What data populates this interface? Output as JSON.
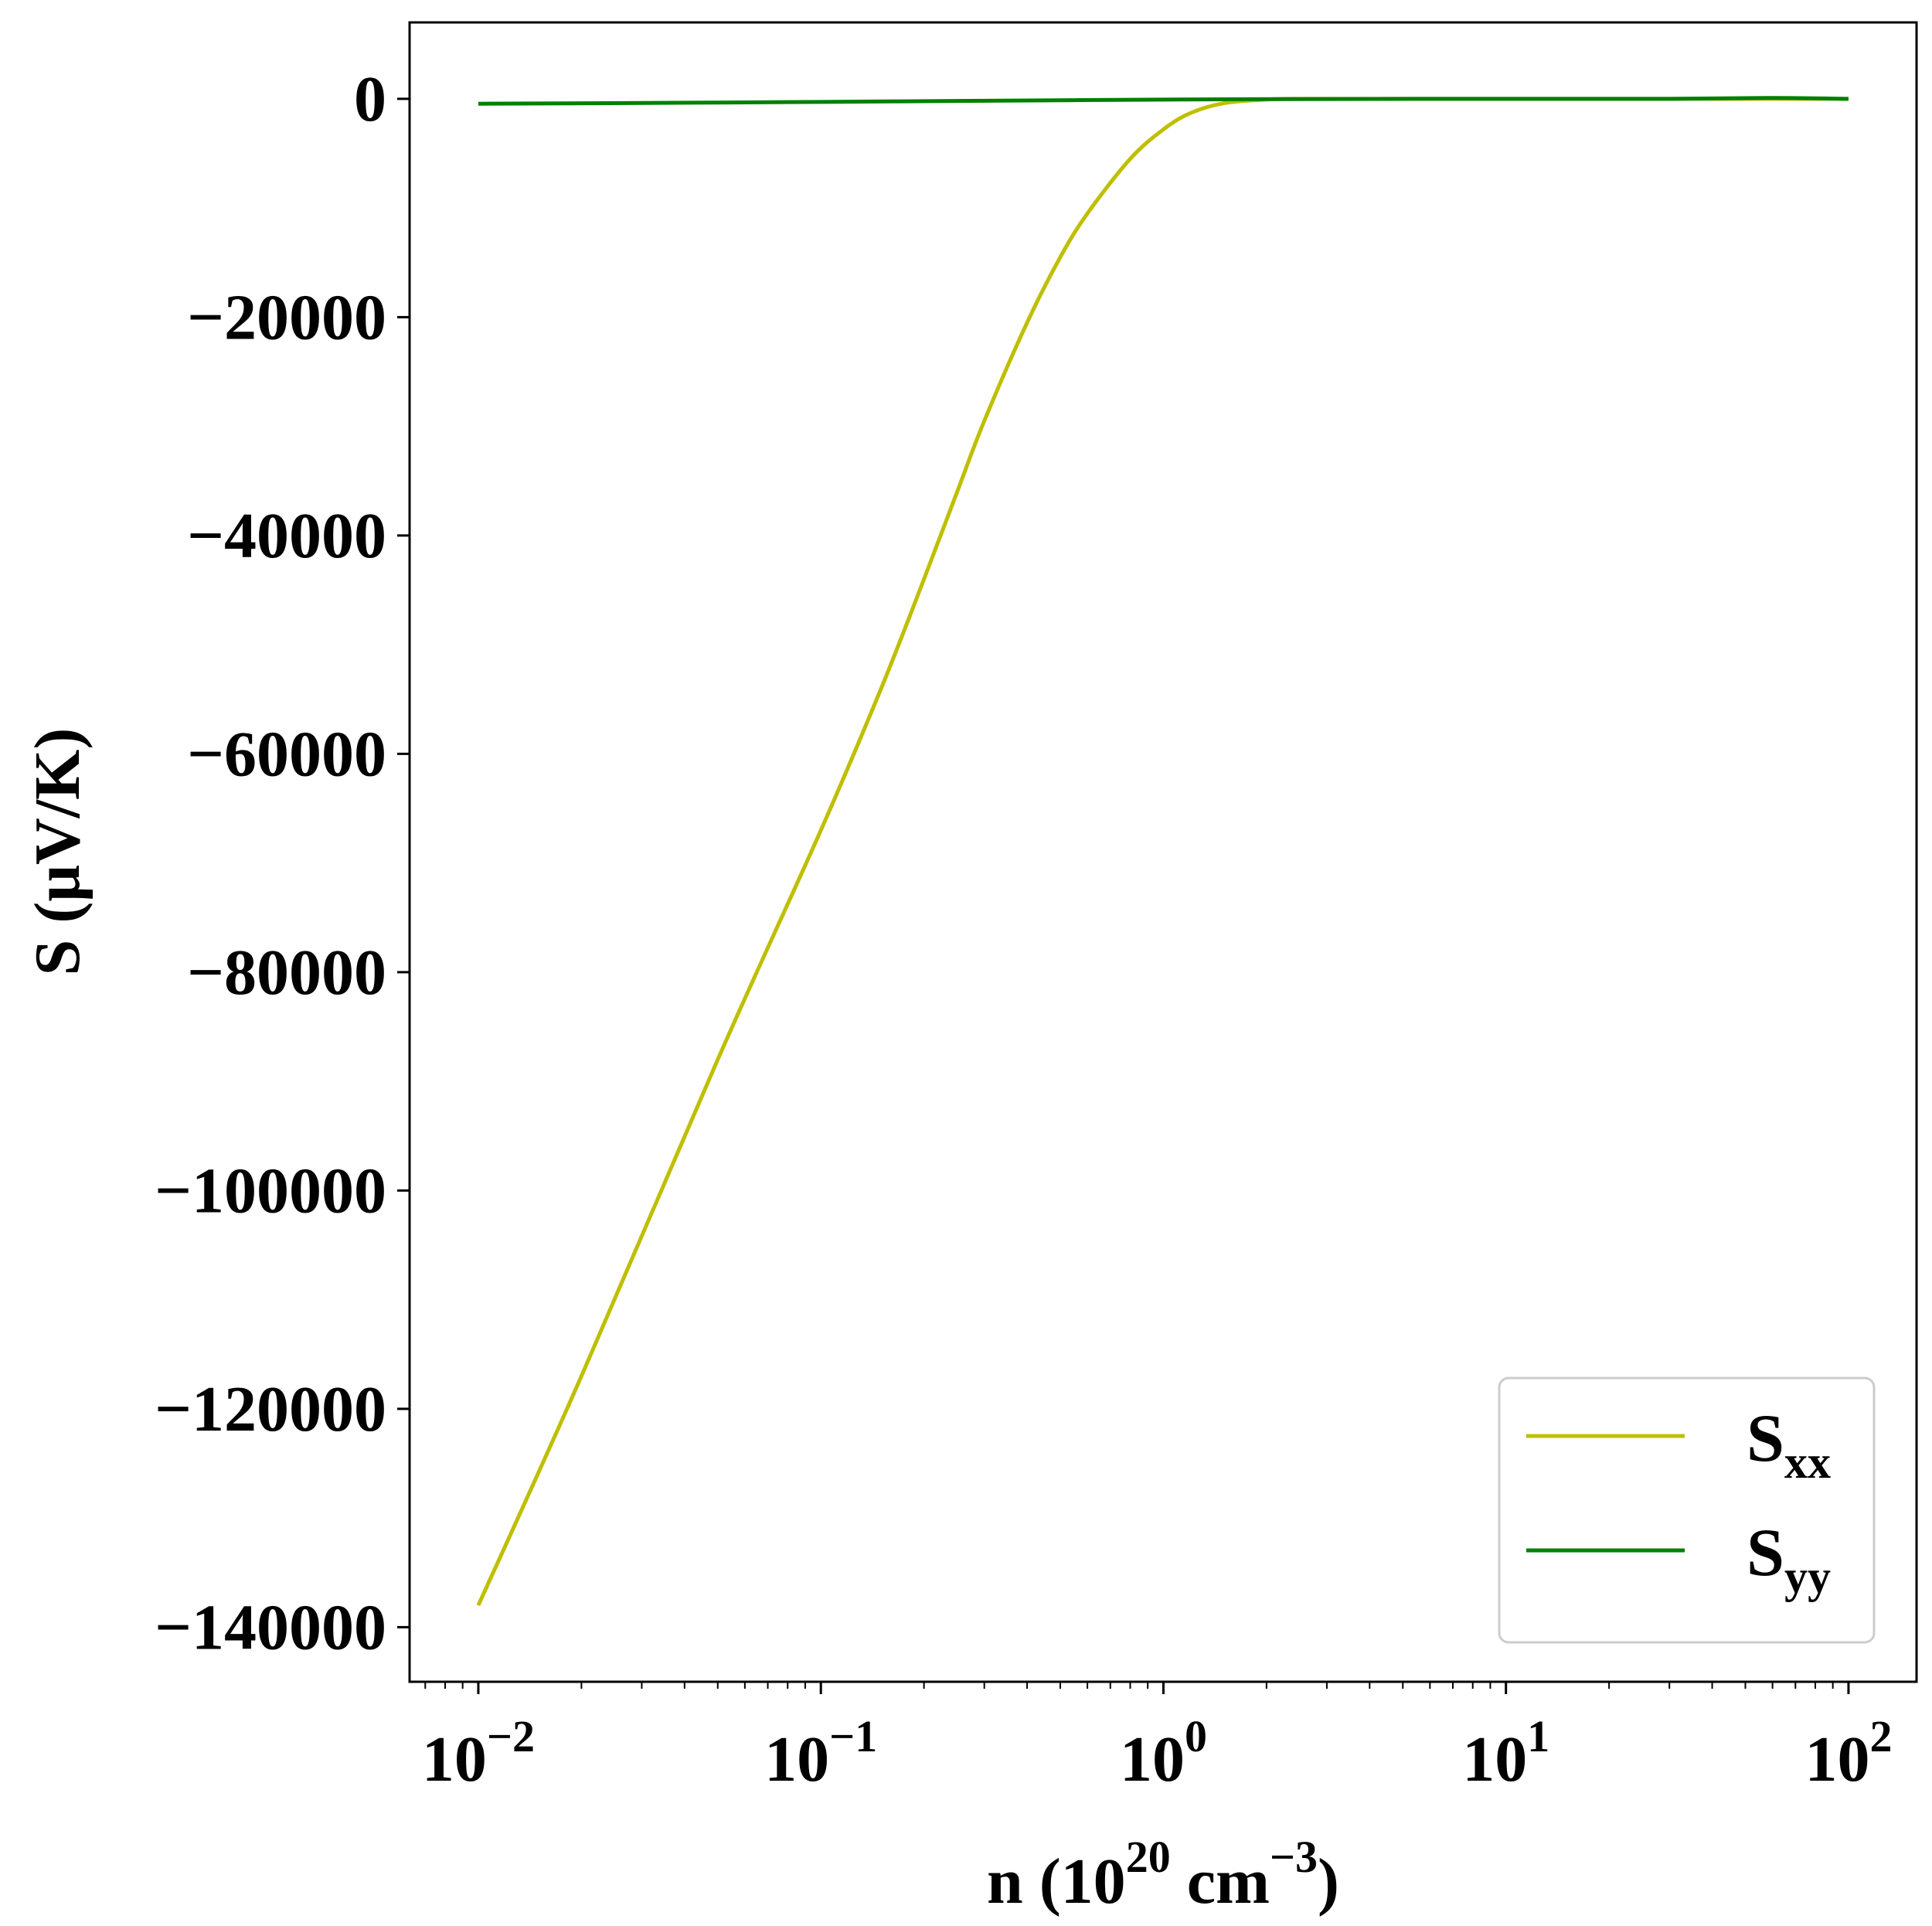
{
  "chart_data": {
    "type": "line",
    "xlabel": {
      "main": "n (10",
      "sup1": "20",
      "mid": " cm",
      "sup2": "−3",
      "end": ")"
    },
    "ylabel": "S (μV/K)",
    "xscale": "log",
    "xlim": [
      0.0063,
      158
    ],
    "ylim": [
      -145000,
      7000
    ],
    "x_ticks": [
      {
        "value": 0.01,
        "base": "10",
        "exp": "−2"
      },
      {
        "value": 0.1,
        "base": "10",
        "exp": "−1"
      },
      {
        "value": 1,
        "base": "10",
        "exp": "0"
      },
      {
        "value": 10,
        "base": "10",
        "exp": "1"
      },
      {
        "value": 100,
        "base": "10",
        "exp": "2"
      }
    ],
    "y_ticks": [
      {
        "value": 0,
        "label": "0"
      },
      {
        "value": -20000,
        "label": "−20000"
      },
      {
        "value": -40000,
        "label": "−40000"
      },
      {
        "value": -60000,
        "label": "−60000"
      },
      {
        "value": -80000,
        "label": "−80000"
      },
      {
        "value": -100000,
        "label": "−100000"
      },
      {
        "value": -120000,
        "label": "−120000"
      },
      {
        "value": -140000,
        "label": "−140000"
      }
    ],
    "grid": false,
    "legend_position": "lower-right",
    "series": [
      {
        "name": "S",
        "sub": "xx",
        "color": "#bfbf00",
        "x": [
          0.01,
          0.02,
          0.05,
          0.1,
          0.15,
          0.2,
          0.25,
          0.3,
          0.4,
          0.5,
          0.6,
          0.8,
          1.0,
          1.2,
          1.5,
          2.0,
          2.5,
          3.0,
          5.0,
          10,
          20,
          50,
          100
        ],
        "y": [
          -138000,
          -117000,
          -88000,
          -67000,
          -54000,
          -44000,
          -36000,
          -29500,
          -20500,
          -14500,
          -10500,
          -5500,
          -2800,
          -1300,
          -400,
          -60,
          0,
          0,
          0,
          0,
          0,
          0,
          0
        ]
      },
      {
        "name": "S",
        "sub": "yy",
        "color": "#008000",
        "x": [
          0.01,
          0.03,
          0.1,
          0.3,
          1.0,
          3.0,
          10,
          30,
          60,
          100
        ],
        "y": [
          -450,
          -380,
          -280,
          -180,
          -70,
          -15,
          0,
          0,
          80,
          0
        ]
      }
    ]
  }
}
